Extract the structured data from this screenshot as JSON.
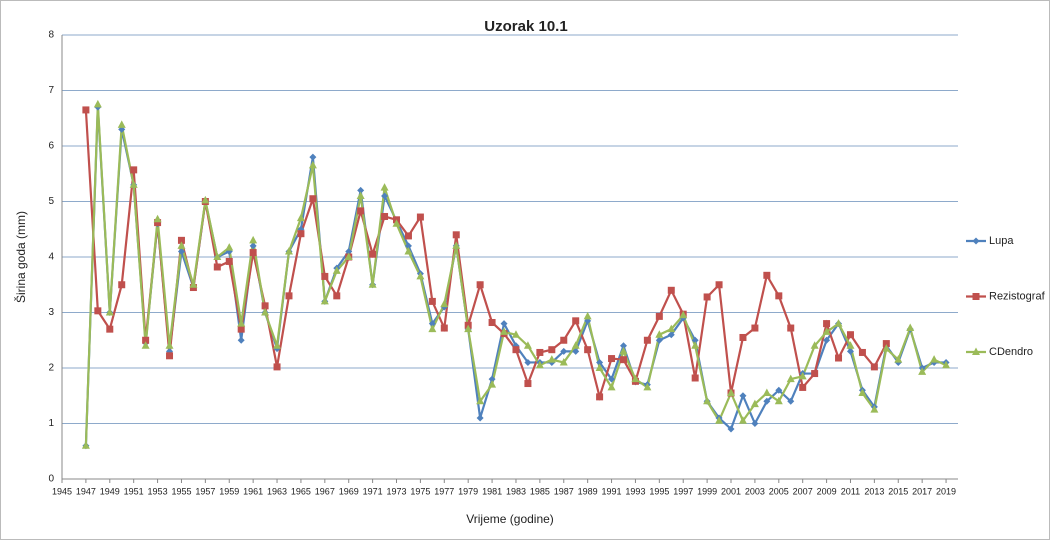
{
  "chart_data": {
    "type": "line",
    "title": "Uzorak 10.1",
    "x_label": "Vrijeme (godine)",
    "y_label": "Širina goda (mm)",
    "x": [
      1947,
      1948,
      1949,
      1950,
      1951,
      1952,
      1953,
      1954,
      1955,
      1956,
      1957,
      1958,
      1959,
      1960,
      1961,
      1962,
      1963,
      1964,
      1965,
      1966,
      1967,
      1968,
      1969,
      1970,
      1971,
      1972,
      1973,
      1974,
      1975,
      1976,
      1977,
      1978,
      1979,
      1980,
      1981,
      1982,
      1983,
      1984,
      1985,
      1986,
      1987,
      1988,
      1989,
      1990,
      1991,
      1992,
      1993,
      1994,
      1995,
      1996,
      1997,
      1998,
      1999,
      2000,
      2001,
      2002,
      2003,
      2004,
      2005,
      2006,
      2007,
      2008,
      2009,
      2010,
      2011,
      2012,
      2013,
      2014,
      2015,
      2016,
      2017,
      2018,
      2019
    ],
    "series": [
      {
        "name": "Lupa",
        "color": "#4f81bd",
        "marker": "diamond",
        "values": [
          0.6,
          6.7,
          3.0,
          6.3,
          5.3,
          2.45,
          4.6,
          2.3,
          4.1,
          3.45,
          5.0,
          4.0,
          4.1,
          2.5,
          4.2,
          3.0,
          2.35,
          4.1,
          4.5,
          5.8,
          3.2,
          3.8,
          4.1,
          5.2,
          3.5,
          5.1,
          4.65,
          4.2,
          3.7,
          2.8,
          3.1,
          4.2,
          2.7,
          1.1,
          1.8,
          2.8,
          2.4,
          2.1,
          2.1,
          2.1,
          2.3,
          2.3,
          2.85,
          2.1,
          1.8,
          2.4,
          1.75,
          1.7,
          2.5,
          2.6,
          2.9,
          2.5,
          1.4,
          1.1,
          0.9,
          1.5,
          1.0,
          1.4,
          1.6,
          1.4,
          1.9,
          1.9,
          2.5,
          2.8,
          2.3,
          1.6,
          1.3,
          2.4,
          2.1,
          2.7,
          2.0,
          2.1,
          2.1
        ]
      },
      {
        "name": "Rezistograf",
        "color": "#c0504d",
        "marker": "square",
        "values": [
          6.65,
          3.03,
          2.7,
          3.5,
          5.57,
          2.5,
          4.62,
          2.22,
          4.3,
          3.45,
          5.0,
          3.82,
          3.92,
          2.7,
          4.08,
          3.12,
          2.02,
          3.3,
          4.42,
          5.05,
          3.65,
          3.3,
          4.0,
          4.83,
          4.05,
          4.73,
          4.67,
          4.38,
          4.72,
          3.2,
          2.72,
          4.4,
          2.77,
          3.5,
          2.82,
          2.62,
          2.33,
          1.72,
          2.28,
          2.33,
          2.5,
          2.85,
          2.33,
          1.48,
          2.17,
          2.15,
          1.76,
          2.5,
          2.93,
          3.4,
          2.97,
          1.82,
          3.28,
          3.5,
          1.55,
          2.55,
          2.72,
          3.67,
          3.3,
          2.72,
          1.65,
          1.9,
          2.8,
          2.18,
          2.6,
          2.28,
          2.02,
          2.44,
          null,
          null,
          null,
          null,
          null
        ]
      },
      {
        "name": "CDendro",
        "color": "#9bbb59",
        "marker": "triangle",
        "values": [
          0.6,
          6.75,
          3.0,
          6.38,
          5.3,
          2.4,
          4.68,
          2.4,
          4.2,
          3.5,
          5.02,
          4.0,
          4.17,
          2.8,
          4.3,
          3.0,
          2.4,
          4.1,
          4.7,
          5.65,
          3.2,
          3.75,
          4.0,
          5.1,
          3.5,
          5.25,
          4.6,
          4.1,
          3.65,
          2.7,
          3.15,
          4.2,
          2.7,
          1.4,
          1.7,
          2.65,
          2.6,
          2.4,
          2.05,
          2.15,
          2.1,
          2.4,
          2.93,
          2.0,
          1.65,
          2.3,
          1.8,
          1.65,
          2.6,
          2.7,
          2.95,
          2.4,
          1.4,
          1.05,
          1.55,
          1.05,
          1.35,
          1.55,
          1.4,
          1.8,
          1.85,
          2.4,
          2.65,
          2.8,
          2.4,
          1.55,
          1.25,
          2.35,
          2.15,
          2.72,
          1.93,
          2.15,
          2.05
        ]
      }
    ],
    "xlim": [
      1945,
      2020
    ],
    "xticks": [
      1945,
      1947,
      1949,
      1951,
      1953,
      1955,
      1957,
      1959,
      1961,
      1963,
      1965,
      1967,
      1969,
      1971,
      1973,
      1975,
      1977,
      1979,
      1981,
      1983,
      1985,
      1987,
      1989,
      1991,
      1993,
      1995,
      1997,
      1999,
      2001,
      2003,
      2005,
      2007,
      2009,
      2011,
      2013,
      2015,
      2017,
      2019
    ],
    "ylim": [
      0,
      8
    ],
    "yticks": [
      0,
      1,
      2,
      3,
      4,
      5,
      6,
      7,
      8
    ],
    "grid": true,
    "legend": "right"
  }
}
